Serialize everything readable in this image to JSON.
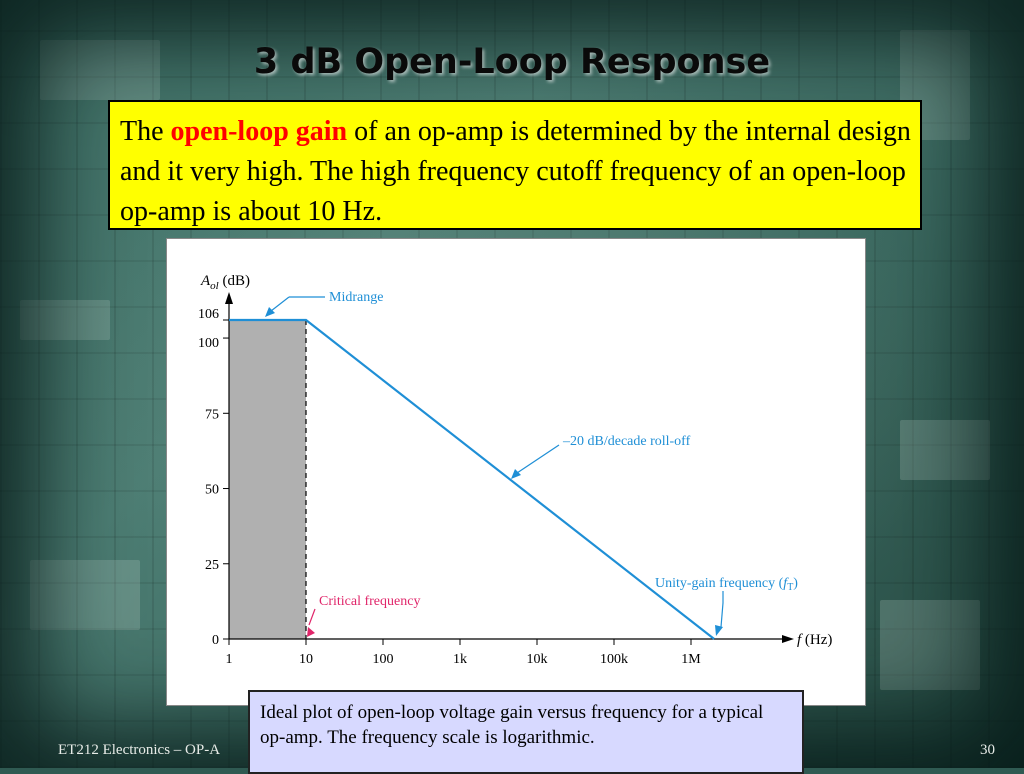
{
  "slide": {
    "title": "3 dB Open-Loop Response",
    "intro": {
      "before": "The ",
      "highlight": "open-loop gain",
      "after": " of an op-amp is determined by the internal design and it very high. The high frequency cutoff frequency of an open-loop op-amp is about 10 Hz."
    },
    "caption": "Ideal plot of open-loop voltage gain versus frequency for a typical op-amp. The frequency scale is logarithmic.",
    "footer_left": "ET212 Electronics – OP-A",
    "page_number": "30"
  },
  "colors": {
    "curve": "#1f8fd6",
    "critical": "#e0266a",
    "shade": "#b0b0b0",
    "intro_bg": "#ffff00",
    "intro_highlight": "#ff0000",
    "caption_bg": "#d7d9ff"
  },
  "chart_data": {
    "type": "line",
    "x_scale": "log",
    "y_label_main": "A",
    "y_label_sub": "ol",
    "y_label_unit": " (dB)",
    "x_label_var": "f",
    "x_label_unit": " (Hz)",
    "ylim": [
      0,
      106
    ],
    "xlim": [
      1,
      2000000
    ],
    "yticks": [
      {
        "value": 0,
        "label": "0"
      },
      {
        "value": 25,
        "label": "25"
      },
      {
        "value": 50,
        "label": "50"
      },
      {
        "value": 75,
        "label": "75"
      },
      {
        "value": 100,
        "label": "100"
      },
      {
        "value": 106,
        "label": "106"
      }
    ],
    "xticks": [
      {
        "value": 1,
        "label": "1"
      },
      {
        "value": 10,
        "label": "10"
      },
      {
        "value": 100,
        "label": "100"
      },
      {
        "value": 1000,
        "label": "1k"
      },
      {
        "value": 10000,
        "label": "10k"
      },
      {
        "value": 100000,
        "label": "100k"
      },
      {
        "value": 1000000,
        "label": "1M"
      }
    ],
    "series": [
      {
        "points": [
          [
            1,
            106
          ],
          [
            10,
            106
          ],
          [
            2000000,
            0
          ]
        ]
      }
    ],
    "shaded_region": {
      "x_from": 1,
      "x_to": 10
    },
    "critical_frequency": 10,
    "annotations": {
      "midrange": "Midrange",
      "rolloff": "–20 dB/decade roll-off",
      "critical": "Critical frequency",
      "unity_prefix": "Unity-gain frequency (",
      "unity_var": "f",
      "unity_sub": "T",
      "unity_suffix": ")"
    }
  }
}
